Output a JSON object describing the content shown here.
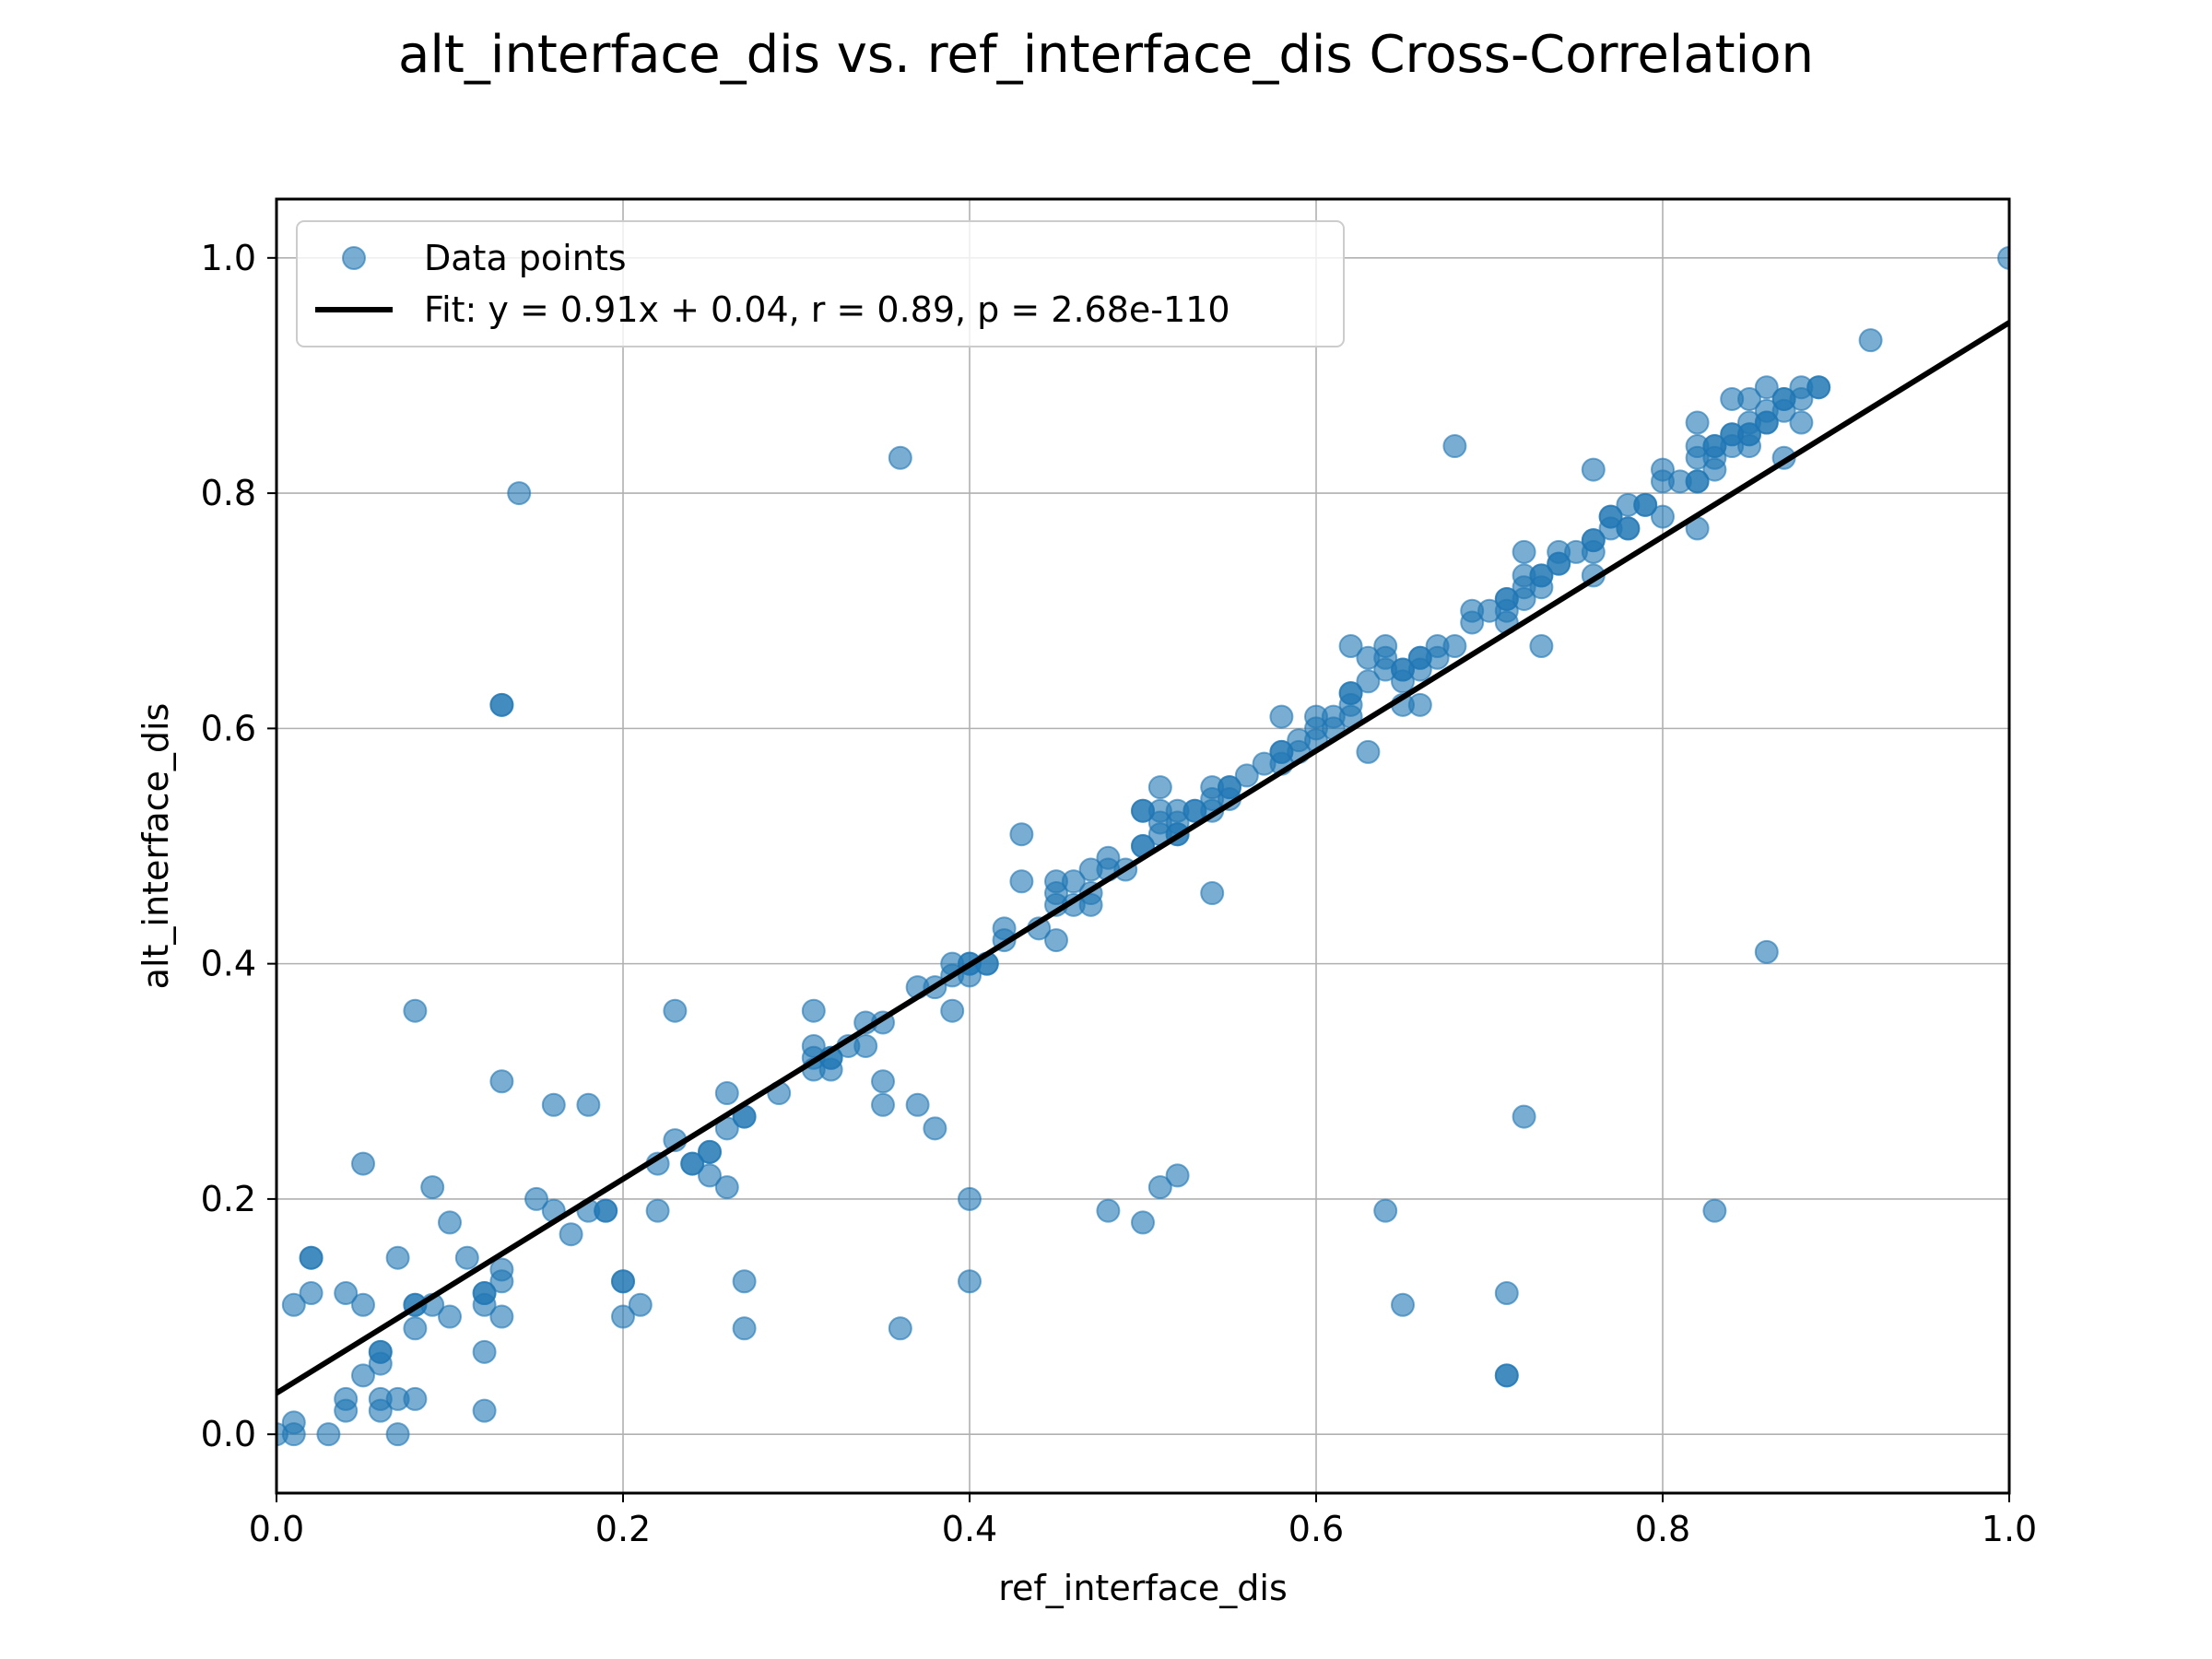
{
  "chart_data": {
    "type": "scatter",
    "title": "alt_interface_dis vs. ref_interface_dis Cross-Correlation",
    "xlabel": "ref_interface_dis",
    "ylabel": "alt_interface_dis",
    "xlim": [
      0.0,
      1.0
    ],
    "ylim": [
      -0.05,
      1.05
    ],
    "xticks": [
      0.0,
      0.2,
      0.4,
      0.6,
      0.8,
      1.0
    ],
    "xtick_labels": [
      "0.0",
      "0.2",
      "0.4",
      "0.6",
      "0.8",
      "1.0"
    ],
    "yticks": [
      0.0,
      0.2,
      0.4,
      0.6,
      0.8,
      1.0
    ],
    "ytick_labels": [
      "0.0",
      "0.2",
      "0.4",
      "0.6",
      "0.8",
      "1.0"
    ],
    "grid": true,
    "legend_position": "upper-left",
    "series": [
      {
        "name": "Data points",
        "kind": "scatter",
        "color": "#1f77b4",
        "alpha": 0.6,
        "points": [
          [
            0.0,
            0.0
          ],
          [
            0.01,
            0.01
          ],
          [
            0.01,
            0.0
          ],
          [
            0.01,
            0.11
          ],
          [
            0.02,
            0.12
          ],
          [
            0.02,
            0.15
          ],
          [
            0.02,
            0.15
          ],
          [
            0.03,
            0.0
          ],
          [
            0.04,
            0.02
          ],
          [
            0.04,
            0.03
          ],
          [
            0.04,
            0.12
          ],
          [
            0.05,
            0.05
          ],
          [
            0.05,
            0.11
          ],
          [
            0.05,
            0.23
          ],
          [
            0.06,
            0.02
          ],
          [
            0.06,
            0.03
          ],
          [
            0.06,
            0.06
          ],
          [
            0.06,
            0.07
          ],
          [
            0.06,
            0.07
          ],
          [
            0.07,
            0.0
          ],
          [
            0.07,
            0.03
          ],
          [
            0.07,
            0.15
          ],
          [
            0.08,
            0.03
          ],
          [
            0.08,
            0.09
          ],
          [
            0.08,
            0.11
          ],
          [
            0.08,
            0.11
          ],
          [
            0.08,
            0.36
          ],
          [
            0.09,
            0.11
          ],
          [
            0.09,
            0.21
          ],
          [
            0.1,
            0.1
          ],
          [
            0.1,
            0.18
          ],
          [
            0.11,
            0.15
          ],
          [
            0.12,
            0.02
          ],
          [
            0.12,
            0.07
          ],
          [
            0.12,
            0.11
          ],
          [
            0.12,
            0.12
          ],
          [
            0.12,
            0.12
          ],
          [
            0.13,
            0.1
          ],
          [
            0.13,
            0.13
          ],
          [
            0.13,
            0.14
          ],
          [
            0.13,
            0.3
          ],
          [
            0.13,
            0.62
          ],
          [
            0.13,
            0.62
          ],
          [
            0.14,
            0.8
          ],
          [
            0.15,
            0.2
          ],
          [
            0.16,
            0.19
          ],
          [
            0.16,
            0.28
          ],
          [
            0.17,
            0.17
          ],
          [
            0.18,
            0.19
          ],
          [
            0.18,
            0.28
          ],
          [
            0.19,
            0.19
          ],
          [
            0.19,
            0.19
          ],
          [
            0.2,
            0.1
          ],
          [
            0.2,
            0.13
          ],
          [
            0.2,
            0.13
          ],
          [
            0.21,
            0.11
          ],
          [
            0.22,
            0.19
          ],
          [
            0.22,
            0.23
          ],
          [
            0.23,
            0.25
          ],
          [
            0.23,
            0.36
          ],
          [
            0.24,
            0.23
          ],
          [
            0.24,
            0.23
          ],
          [
            0.25,
            0.22
          ],
          [
            0.25,
            0.24
          ],
          [
            0.25,
            0.24
          ],
          [
            0.26,
            0.21
          ],
          [
            0.26,
            0.26
          ],
          [
            0.26,
            0.29
          ],
          [
            0.27,
            0.09
          ],
          [
            0.27,
            0.13
          ],
          [
            0.27,
            0.27
          ],
          [
            0.27,
            0.27
          ],
          [
            0.29,
            0.29
          ],
          [
            0.31,
            0.31
          ],
          [
            0.31,
            0.32
          ],
          [
            0.31,
            0.33
          ],
          [
            0.31,
            0.36
          ],
          [
            0.32,
            0.31
          ],
          [
            0.32,
            0.32
          ],
          [
            0.32,
            0.32
          ],
          [
            0.33,
            0.33
          ],
          [
            0.34,
            0.33
          ],
          [
            0.34,
            0.35
          ],
          [
            0.35,
            0.28
          ],
          [
            0.35,
            0.3
          ],
          [
            0.35,
            0.35
          ],
          [
            0.36,
            0.09
          ],
          [
            0.36,
            0.83
          ],
          [
            0.37,
            0.28
          ],
          [
            0.37,
            0.38
          ],
          [
            0.38,
            0.26
          ],
          [
            0.38,
            0.38
          ],
          [
            0.39,
            0.36
          ],
          [
            0.39,
            0.39
          ],
          [
            0.39,
            0.4
          ],
          [
            0.4,
            0.13
          ],
          [
            0.4,
            0.2
          ],
          [
            0.4,
            0.39
          ],
          [
            0.4,
            0.4
          ],
          [
            0.4,
            0.4
          ],
          [
            0.41,
            0.4
          ],
          [
            0.41,
            0.4
          ],
          [
            0.42,
            0.42
          ],
          [
            0.42,
            0.43
          ],
          [
            0.43,
            0.47
          ],
          [
            0.43,
            0.51
          ],
          [
            0.44,
            0.43
          ],
          [
            0.45,
            0.42
          ],
          [
            0.45,
            0.45
          ],
          [
            0.45,
            0.46
          ],
          [
            0.45,
            0.47
          ],
          [
            0.46,
            0.45
          ],
          [
            0.46,
            0.47
          ],
          [
            0.47,
            0.45
          ],
          [
            0.47,
            0.46
          ],
          [
            0.47,
            0.48
          ],
          [
            0.48,
            0.19
          ],
          [
            0.48,
            0.48
          ],
          [
            0.48,
            0.49
          ],
          [
            0.49,
            0.48
          ],
          [
            0.5,
            0.18
          ],
          [
            0.5,
            0.5
          ],
          [
            0.5,
            0.5
          ],
          [
            0.5,
            0.53
          ],
          [
            0.5,
            0.53
          ],
          [
            0.51,
            0.21
          ],
          [
            0.51,
            0.51
          ],
          [
            0.51,
            0.52
          ],
          [
            0.51,
            0.53
          ],
          [
            0.51,
            0.55
          ],
          [
            0.52,
            0.22
          ],
          [
            0.52,
            0.51
          ],
          [
            0.52,
            0.51
          ],
          [
            0.52,
            0.52
          ],
          [
            0.52,
            0.53
          ],
          [
            0.53,
            0.53
          ],
          [
            0.53,
            0.53
          ],
          [
            0.54,
            0.46
          ],
          [
            0.54,
            0.53
          ],
          [
            0.54,
            0.54
          ],
          [
            0.54,
            0.55
          ],
          [
            0.55,
            0.54
          ],
          [
            0.55,
            0.55
          ],
          [
            0.55,
            0.55
          ],
          [
            0.56,
            0.56
          ],
          [
            0.57,
            0.57
          ],
          [
            0.58,
            0.57
          ],
          [
            0.58,
            0.58
          ],
          [
            0.58,
            0.58
          ],
          [
            0.58,
            0.61
          ],
          [
            0.59,
            0.58
          ],
          [
            0.59,
            0.59
          ],
          [
            0.6,
            0.59
          ],
          [
            0.6,
            0.6
          ],
          [
            0.6,
            0.61
          ],
          [
            0.61,
            0.6
          ],
          [
            0.61,
            0.61
          ],
          [
            0.62,
            0.61
          ],
          [
            0.62,
            0.62
          ],
          [
            0.62,
            0.63
          ],
          [
            0.62,
            0.63
          ],
          [
            0.62,
            0.67
          ],
          [
            0.63,
            0.58
          ],
          [
            0.63,
            0.64
          ],
          [
            0.63,
            0.66
          ],
          [
            0.64,
            0.19
          ],
          [
            0.64,
            0.65
          ],
          [
            0.64,
            0.66
          ],
          [
            0.64,
            0.67
          ],
          [
            0.65,
            0.11
          ],
          [
            0.65,
            0.62
          ],
          [
            0.65,
            0.64
          ],
          [
            0.65,
            0.65
          ],
          [
            0.65,
            0.65
          ],
          [
            0.66,
            0.62
          ],
          [
            0.66,
            0.65
          ],
          [
            0.66,
            0.66
          ],
          [
            0.66,
            0.66
          ],
          [
            0.67,
            0.66
          ],
          [
            0.67,
            0.67
          ],
          [
            0.68,
            0.67
          ],
          [
            0.68,
            0.84
          ],
          [
            0.69,
            0.69
          ],
          [
            0.69,
            0.7
          ],
          [
            0.7,
            0.7
          ],
          [
            0.71,
            0.05
          ],
          [
            0.71,
            0.05
          ],
          [
            0.71,
            0.12
          ],
          [
            0.71,
            0.69
          ],
          [
            0.71,
            0.7
          ],
          [
            0.71,
            0.71
          ],
          [
            0.71,
            0.71
          ],
          [
            0.72,
            0.27
          ],
          [
            0.72,
            0.71
          ],
          [
            0.72,
            0.72
          ],
          [
            0.72,
            0.73
          ],
          [
            0.72,
            0.75
          ],
          [
            0.73,
            0.67
          ],
          [
            0.73,
            0.72
          ],
          [
            0.73,
            0.73
          ],
          [
            0.73,
            0.73
          ],
          [
            0.74,
            0.74
          ],
          [
            0.74,
            0.74
          ],
          [
            0.74,
            0.75
          ],
          [
            0.75,
            0.75
          ],
          [
            0.76,
            0.73
          ],
          [
            0.76,
            0.75
          ],
          [
            0.76,
            0.76
          ],
          [
            0.76,
            0.76
          ],
          [
            0.76,
            0.82
          ],
          [
            0.77,
            0.77
          ],
          [
            0.77,
            0.78
          ],
          [
            0.77,
            0.78
          ],
          [
            0.78,
            0.77
          ],
          [
            0.78,
            0.77
          ],
          [
            0.78,
            0.79
          ],
          [
            0.79,
            0.79
          ],
          [
            0.79,
            0.79
          ],
          [
            0.8,
            0.78
          ],
          [
            0.8,
            0.81
          ],
          [
            0.8,
            0.82
          ],
          [
            0.81,
            0.81
          ],
          [
            0.82,
            0.77
          ],
          [
            0.82,
            0.81
          ],
          [
            0.82,
            0.81
          ],
          [
            0.82,
            0.83
          ],
          [
            0.82,
            0.84
          ],
          [
            0.82,
            0.86
          ],
          [
            0.83,
            0.19
          ],
          [
            0.83,
            0.82
          ],
          [
            0.83,
            0.83
          ],
          [
            0.83,
            0.84
          ],
          [
            0.83,
            0.84
          ],
          [
            0.84,
            0.84
          ],
          [
            0.84,
            0.85
          ],
          [
            0.84,
            0.85
          ],
          [
            0.84,
            0.88
          ],
          [
            0.85,
            0.84
          ],
          [
            0.85,
            0.85
          ],
          [
            0.85,
            0.85
          ],
          [
            0.85,
            0.86
          ],
          [
            0.85,
            0.88
          ],
          [
            0.86,
            0.41
          ],
          [
            0.86,
            0.86
          ],
          [
            0.86,
            0.86
          ],
          [
            0.86,
            0.87
          ],
          [
            0.86,
            0.89
          ],
          [
            0.87,
            0.83
          ],
          [
            0.87,
            0.87
          ],
          [
            0.87,
            0.88
          ],
          [
            0.87,
            0.88
          ],
          [
            0.88,
            0.86
          ],
          [
            0.88,
            0.88
          ],
          [
            0.88,
            0.89
          ],
          [
            0.89,
            0.89
          ],
          [
            0.89,
            0.89
          ],
          [
            0.92,
            0.93
          ],
          [
            1.0,
            1.0
          ]
        ]
      },
      {
        "name": "Fit: y = 0.91x + 0.04,  r = 0.89, p = 2.68e-110",
        "kind": "line",
        "color": "#000000",
        "slope": 0.91,
        "intercept": 0.035,
        "x": [
          0.0,
          1.0
        ]
      }
    ]
  }
}
